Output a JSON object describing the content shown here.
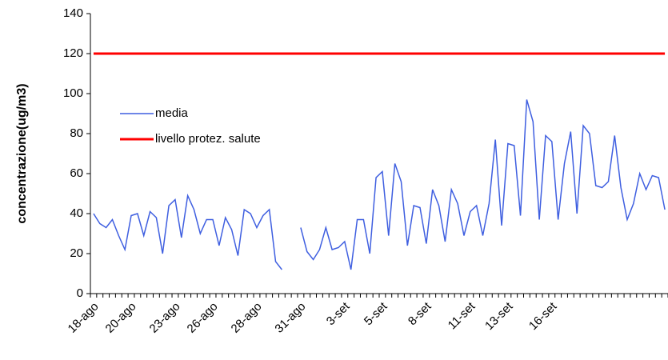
{
  "chart_data": {
    "type": "line",
    "ylabel": "concentrazione(ug/m3)",
    "categories": [
      "18-ago",
      null,
      null,
      null,
      null,
      null,
      "20-ago",
      null,
      null,
      null,
      null,
      null,
      null,
      "23-ago",
      null,
      null,
      null,
      null,
      null,
      "26-ago",
      null,
      null,
      null,
      null,
      null,
      null,
      "28-ago",
      null,
      null,
      null,
      null,
      null,
      null,
      "31-ago",
      null,
      null,
      null,
      null,
      null,
      null,
      "3-set",
      null,
      null,
      null,
      null,
      null,
      "5-set",
      null,
      null,
      null,
      null,
      null,
      null,
      "8-set",
      null,
      null,
      null,
      null,
      null,
      null,
      "11-set",
      null,
      null,
      null,
      null,
      null,
      "13-set",
      null,
      null,
      null,
      null,
      null,
      null,
      "16-set",
      null,
      null,
      null,
      null,
      null,
      null,
      null,
      null,
      null,
      null,
      null,
      null,
      null,
      null,
      null,
      null,
      null,
      null
    ],
    "series": [
      {
        "name": "media",
        "color": "#3f5fe0",
        "width": 1.5,
        "values": [
          40,
          35,
          33,
          37,
          29,
          22,
          39,
          40,
          29,
          41,
          38,
          20,
          44,
          47,
          28,
          49,
          42,
          30,
          37,
          37,
          24,
          38,
          32,
          19,
          42,
          40,
          33,
          39,
          42,
          16,
          12,
          null,
          null,
          33,
          21,
          17,
          22,
          33,
          22,
          23,
          26,
          12,
          37,
          37,
          20,
          58,
          61,
          29,
          65,
          56,
          24,
          44,
          43,
          25,
          52,
          44,
          26,
          52,
          45,
          29,
          41,
          44,
          29,
          45,
          77,
          34,
          75,
          74,
          39,
          97,
          86,
          37,
          79,
          76,
          37,
          65,
          81,
          40,
          84,
          80,
          54,
          53,
          56,
          79,
          53,
          37,
          45,
          60,
          52,
          59,
          58,
          42
        ]
      },
      {
        "name": "livello protez. salute",
        "color": "#ff0000",
        "width": 3,
        "values": [
          120,
          120,
          120,
          120,
          120,
          120,
          120,
          120,
          120,
          120,
          120,
          120,
          120,
          120,
          120,
          120,
          120,
          120,
          120,
          120,
          120,
          120,
          120,
          120,
          120,
          120,
          120,
          120,
          120,
          120,
          120,
          120,
          120,
          120,
          120,
          120,
          120,
          120,
          120,
          120,
          120,
          120,
          120,
          120,
          120,
          120,
          120,
          120,
          120,
          120,
          120,
          120,
          120,
          120,
          120,
          120,
          120,
          120,
          120,
          120,
          120,
          120,
          120,
          120,
          120,
          120,
          120,
          120,
          120,
          120,
          120,
          120,
          120,
          120,
          120,
          120,
          120,
          120,
          120,
          120,
          120,
          120,
          120,
          120,
          120,
          120,
          120,
          120,
          120,
          120,
          120,
          120
        ]
      }
    ],
    "ylim": [
      0,
      140
    ],
    "yticks": [
      0,
      20,
      40,
      60,
      80,
      100,
      120,
      140
    ],
    "grid": false,
    "legend": "upper left"
  }
}
